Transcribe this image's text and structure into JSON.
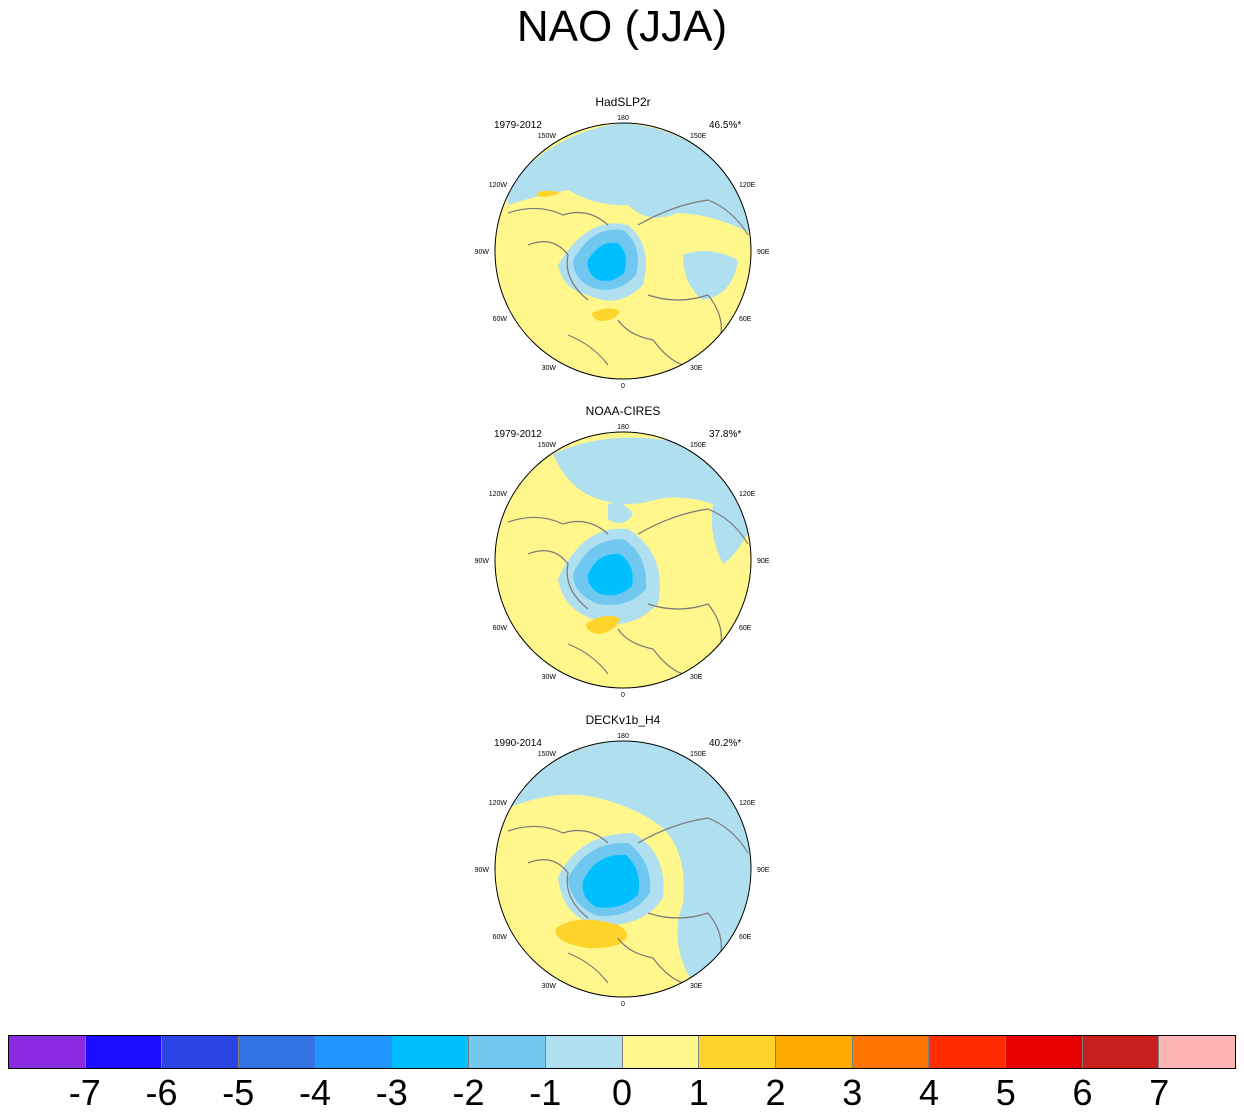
{
  "title": "NAO (JJA)",
  "panels": [
    {
      "name": "HadSLP2r",
      "period": "1979-2012",
      "percent": "46.5%*"
    },
    {
      "name": "NOAA-CIRES",
      "period": "1979-2012",
      "percent": "37.8%*"
    },
    {
      "name": "DECKv1b_H4",
      "period": "1990-2014",
      "percent": "40.2%*"
    }
  ],
  "longitude_labels": [
    "180",
    "150E",
    "120E",
    "90E",
    "60E",
    "30E",
    "0",
    "30W",
    "60W",
    "90W",
    "120W",
    "150W"
  ],
  "colorbar": {
    "colors": [
      "#8a2be2",
      "#1a0dff",
      "#2b44e6",
      "#3373e6",
      "#1e96ff",
      "#00bfff",
      "#70c8f0",
      "#b0dff0",
      "#fff78c",
      "#ffd42a",
      "#ffaa00",
      "#ff7300",
      "#ff2d00",
      "#e60000",
      "#c81e1e",
      "#ffb2b2"
    ],
    "labels": [
      "-7",
      "-6",
      "-5",
      "-4",
      "-3",
      "-2",
      "-1",
      "0",
      "1",
      "2",
      "3",
      "4",
      "5",
      "6",
      "7"
    ]
  },
  "colors": {
    "light_blue": "#b0dff0",
    "mid_blue": "#70c8f0",
    "blue": "#00bfff",
    "yellow": "#fff78c",
    "gold": "#ffd42a",
    "coast": "#7a7a7a"
  }
}
